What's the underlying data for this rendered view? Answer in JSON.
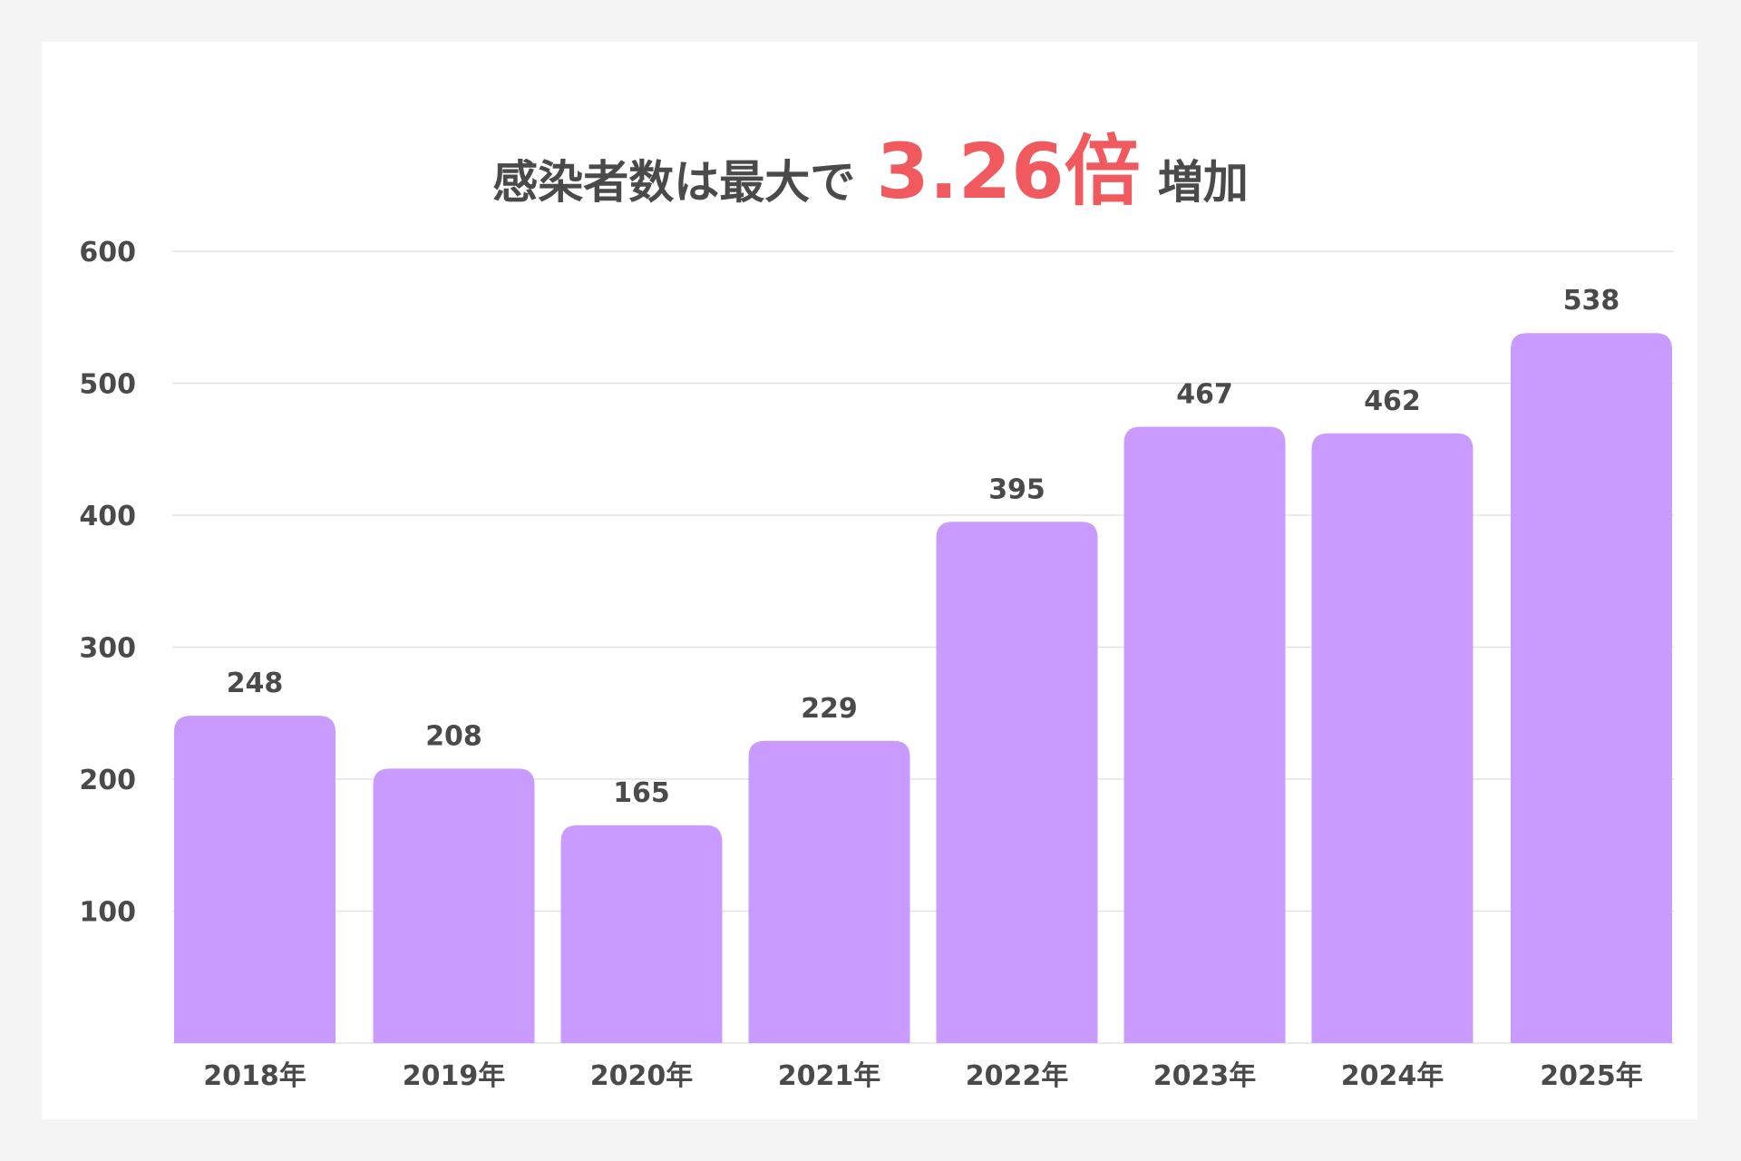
{
  "colors": {
    "bar": "#c99bff",
    "accent": "#f05a5f",
    "text": "#4a4a4a",
    "grid": "#e3e3e3",
    "card": "#ffffff",
    "background": "#f4f4f4"
  },
  "chart_data": {
    "type": "bar",
    "title": {
      "prefix": "感染者数は最大で",
      "highlight": "3.26倍",
      "suffix": "増加"
    },
    "categories": [
      "2018年",
      "2019年",
      "2020年",
      "2021年",
      "2022年",
      "2023年",
      "2024年",
      "2025年"
    ],
    "values": [
      248,
      208,
      165,
      229,
      395,
      467,
      462,
      538
    ],
    "data_labels": [
      "248",
      "208",
      "165",
      "229",
      "395",
      "467",
      "462",
      "538"
    ],
    "yticks": [
      100,
      200,
      300,
      400,
      500,
      600
    ],
    "ylim": [
      0,
      600
    ],
    "grid": true,
    "legend": "none",
    "xlabel": "",
    "ylabel": ""
  }
}
